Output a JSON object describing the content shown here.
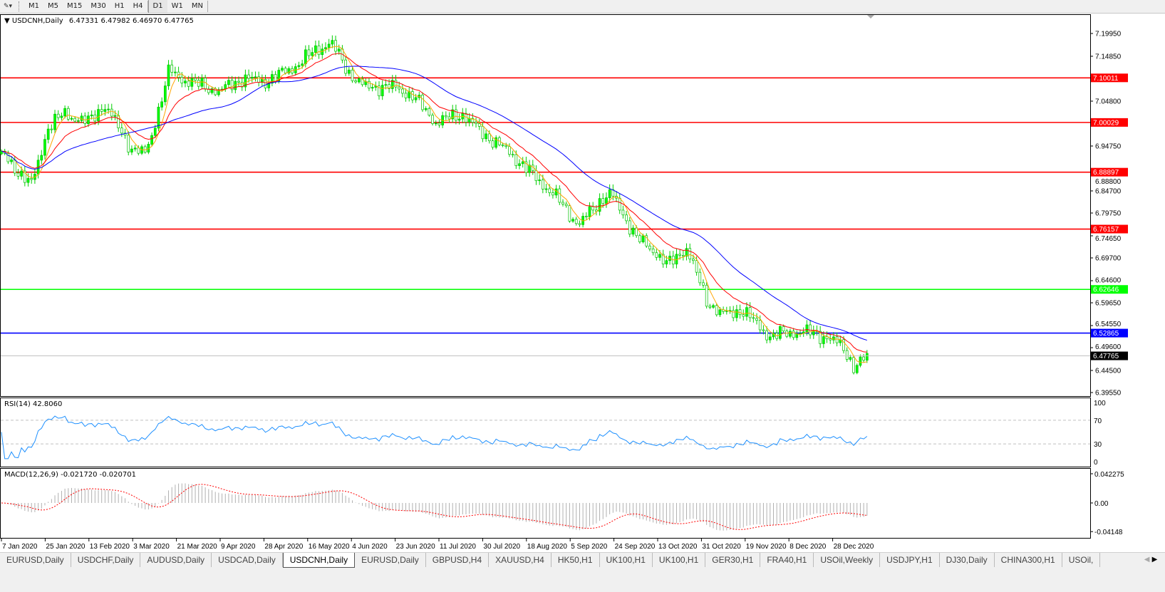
{
  "toolbar": {
    "timeframes": [
      "M1",
      "M5",
      "M15",
      "M30",
      "H1",
      "H4",
      "D1",
      "W1",
      "MN"
    ],
    "active": "D1"
  },
  "chart": {
    "symbol_line": "USDCNH,Daily",
    "ohlc": "6.47331 6.47982 6.46970 6.47765",
    "rsi_label": "RSI(14) 42.8060",
    "macd_label": "MACD(12,26,9) -0.021720 -0.020701"
  },
  "chart_data": {
    "type": "candlestick",
    "symbol": "USDCNH",
    "timeframe": "Daily",
    "price_axis": {
      "ticks": [
        "7.19950",
        "7.14850",
        "7.04800",
        "6.94750",
        "6.88800",
        "6.84700",
        "6.79750",
        "6.74650",
        "6.69700",
        "6.64600",
        "6.59650",
        "6.54550",
        "6.49600",
        "6.44500",
        "6.39550"
      ],
      "ylim": [
        6.3955,
        7.1995
      ]
    },
    "date_ticks": [
      "7 Jan 2020",
      "25 Jan 2020",
      "13 Feb 2020",
      "3 Mar 2020",
      "21 Mar 2020",
      "9 Apr 2020",
      "28 Apr 2020",
      "16 May 2020",
      "4 Jun 2020",
      "23 Jun 2020",
      "11 Jul 2020",
      "30 Jul 2020",
      "18 Aug 2020",
      "5 Sep 2020",
      "24 Sep 2020",
      "13 Oct 2020",
      "31 Oct 2020",
      "19 Nov 2020",
      "8 Dec 2020",
      "28 Dec 2020"
    ],
    "approx_close": [
      [
        "2020-01-07",
        6.93
      ],
      [
        "2020-01-20",
        6.86
      ],
      [
        "2020-01-27",
        6.99
      ],
      [
        "2020-02-03",
        7.02
      ],
      [
        "2020-02-13",
        7.0
      ],
      [
        "2020-02-20",
        7.04
      ],
      [
        "2020-03-03",
        6.94
      ],
      [
        "2020-03-09",
        6.93
      ],
      [
        "2020-03-19",
        7.12
      ],
      [
        "2020-03-23",
        7.1
      ],
      [
        "2020-04-09",
        7.07
      ],
      [
        "2020-04-20",
        7.1
      ],
      [
        "2020-04-28",
        7.09
      ],
      [
        "2020-05-10",
        7.12
      ],
      [
        "2020-05-20",
        7.16
      ],
      [
        "2020-05-27",
        7.18
      ],
      [
        "2020-06-04",
        7.11
      ],
      [
        "2020-06-10",
        7.08
      ],
      [
        "2020-06-23",
        7.08
      ],
      [
        "2020-07-01",
        7.06
      ],
      [
        "2020-07-11",
        7.0
      ],
      [
        "2020-07-22",
        7.02
      ],
      [
        "2020-07-30",
        6.98
      ],
      [
        "2020-08-12",
        6.93
      ],
      [
        "2020-08-20",
        6.89
      ],
      [
        "2020-09-01",
        6.83
      ],
      [
        "2020-09-10",
        6.77
      ],
      [
        "2020-09-20",
        6.83
      ],
      [
        "2020-09-24",
        6.84
      ],
      [
        "2020-10-05",
        6.74
      ],
      [
        "2020-10-13",
        6.71
      ],
      [
        "2020-10-18",
        6.68
      ],
      [
        "2020-10-26",
        6.72
      ],
      [
        "2020-11-04",
        6.6
      ],
      [
        "2020-11-10",
        6.57
      ],
      [
        "2020-11-19",
        6.58
      ],
      [
        "2020-12-01",
        6.52
      ],
      [
        "2020-12-08",
        6.53
      ],
      [
        "2020-12-20",
        6.53
      ],
      [
        "2021-01-01",
        6.5
      ],
      [
        "2021-01-06",
        6.45
      ],
      [
        "2021-01-12",
        6.47765
      ]
    ],
    "horizontal_lines": [
      {
        "price": "7.10011",
        "color": "#ff0000"
      },
      {
        "price": "7.00029",
        "color": "#ff0000"
      },
      {
        "price": "6.88897",
        "color": "#ff0000"
      },
      {
        "price": "6.76157",
        "color": "#ff0000"
      },
      {
        "price": "6.62646",
        "color": "#00ff00"
      },
      {
        "price": "6.52865",
        "color": "#0000ff"
      }
    ],
    "current_price": "6.47765",
    "moving_average_colors": [
      "#ffa500",
      "#ff0000",
      "#0000ff"
    ],
    "candle_color": "#00e000",
    "rsi": {
      "period": 14,
      "value": 42.806,
      "levels": [
        70,
        30
      ],
      "ticks": [
        "100",
        "70",
        "30",
        "0"
      ],
      "color": "#1e90ff"
    },
    "macd": {
      "params": "12,26,9",
      "main": -0.02172,
      "signal": -0.020701,
      "ticks": [
        "0.042275",
        "0.00",
        "-0.04148"
      ],
      "signal_color": "#ff0000",
      "histogram_color": "#b0b0b0"
    }
  },
  "tabs": [
    "EURUSD,Daily",
    "USDCHF,Daily",
    "AUDUSD,Daily",
    "USDCAD,Daily",
    "USDCNH,Daily",
    "EURUSD,Daily",
    "GBPUSD,H4",
    "XAUUSD,H4",
    "HK50,H1",
    "UK100,H1",
    "UK100,H1",
    "GER30,H1",
    "FRA40,H1",
    "USOil,Weekly",
    "USDJPY,H1",
    "DJ30,Daily",
    "CHINA300,H1",
    "USOil,"
  ],
  "active_tab": "USDCNH,Daily"
}
